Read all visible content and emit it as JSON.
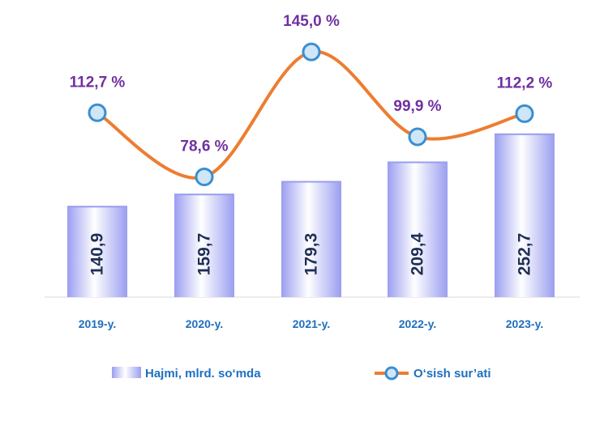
{
  "chart_data": {
    "type": "bar+line",
    "categories": [
      "2019-y.",
      "2020-y.",
      "2021-y.",
      "2022-y.",
      "2023-y."
    ],
    "series": [
      {
        "name": "Hajmi, mlrd. so‘mda",
        "type": "bar",
        "values": [
          140.9,
          159.7,
          179.3,
          209.4,
          252.7
        ],
        "labels": [
          "140,9",
          "159,7",
          "179,3",
          "209,4",
          "252,7"
        ]
      },
      {
        "name": "O‘sish sur’ati",
        "type": "line",
        "values": [
          112.7,
          78.6,
          145.0,
          99.9,
          112.2
        ],
        "labels": [
          "112,7 %",
          "78,6 %",
          "145,0 %",
          "99,9 %",
          "112,2 %"
        ]
      }
    ],
    "legend_position": "bottom",
    "grid": false,
    "colors": {
      "bar_dark": "#9a9ef0",
      "bar_light": "#ffffff",
      "line": "#ed7d31",
      "marker_fill": "#cfe6f7",
      "marker_stroke": "#3a8ed0",
      "bar_label": "#1f2f55",
      "pct_label": "#7030a0",
      "category_label": "#1e6fc0"
    }
  }
}
